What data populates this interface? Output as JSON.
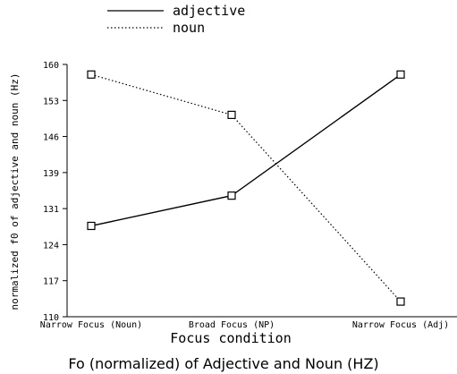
{
  "chart_data": {
    "type": "line",
    "categories": [
      "Narrow Focus (Noun)",
      "Broad Focus (NP)",
      "Narrow Focus (Adj)"
    ],
    "series": [
      {
        "name": "adjective",
        "style": "solid",
        "values": [
          128,
          134,
          158
        ]
      },
      {
        "name": "noun",
        "style": "dotted",
        "values": [
          158,
          150,
          113
        ]
      }
    ],
    "xlabel": "Focus condition",
    "ylabel": "normalized f0 of adjective and noun (Hz)",
    "ylim": [
      110,
      160
    ],
    "yticks": [
      "110",
      "117",
      "124",
      "131",
      "139",
      "146",
      "153",
      "160"
    ],
    "legend_position": "top-center",
    "grid": false,
    "caption": "Fo (normalized) of Adjective and Noun (HZ)",
    "colors": {
      "line": "#000000",
      "background": "#ffffff"
    }
  }
}
